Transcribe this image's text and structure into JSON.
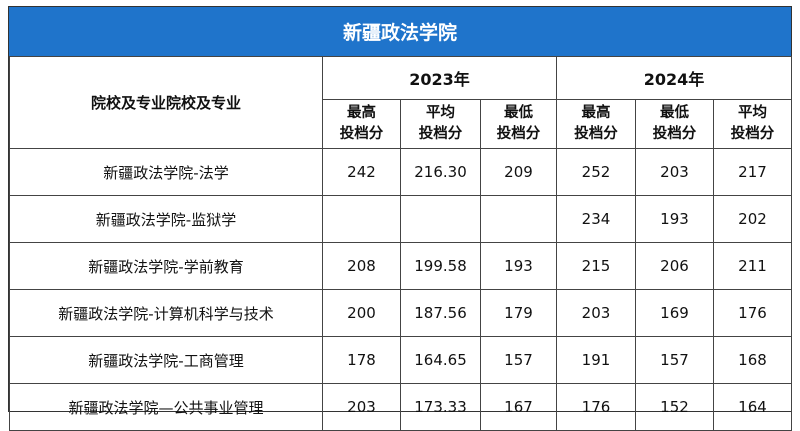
{
  "title": "新疆政法学院",
  "header": {
    "name_col": "院校及专业院校及专业",
    "years": [
      "2023年",
      "2024年"
    ],
    "metrics_2023": [
      {
        "line1": "最高",
        "line2": "投档分"
      },
      {
        "line1": "平均",
        "line2": "投档分"
      },
      {
        "line1": "最低",
        "line2": "投档分"
      }
    ],
    "metrics_2024": [
      {
        "line1": "最高",
        "line2": "投档分"
      },
      {
        "line1": "最低",
        "line2": "投档分"
      },
      {
        "line1": "平均",
        "line2": "投档分"
      }
    ]
  },
  "rows": [
    {
      "name": "新疆政法学院-法学",
      "v": [
        "242",
        "216.30",
        "209",
        "252",
        "203",
        "217"
      ]
    },
    {
      "name": "新疆政法学院-监狱学",
      "v": [
        "",
        "",
        "",
        "234",
        "193",
        "202"
      ]
    },
    {
      "name": "新疆政法学院-学前教育",
      "v": [
        "208",
        "199.58",
        "193",
        "215",
        "206",
        "211"
      ]
    },
    {
      "name": "新疆政法学院-计算机科学与技术",
      "v": [
        "200",
        "187.56",
        "179",
        "203",
        "169",
        "176"
      ]
    },
    {
      "name": "新疆政法学院-工商管理",
      "v": [
        "178",
        "164.65",
        "157",
        "191",
        "157",
        "168"
      ]
    },
    {
      "name": "新疆政法学院—公共事业管理",
      "v": [
        "203",
        "173.33",
        "167",
        "176",
        "152",
        "164"
      ]
    }
  ]
}
